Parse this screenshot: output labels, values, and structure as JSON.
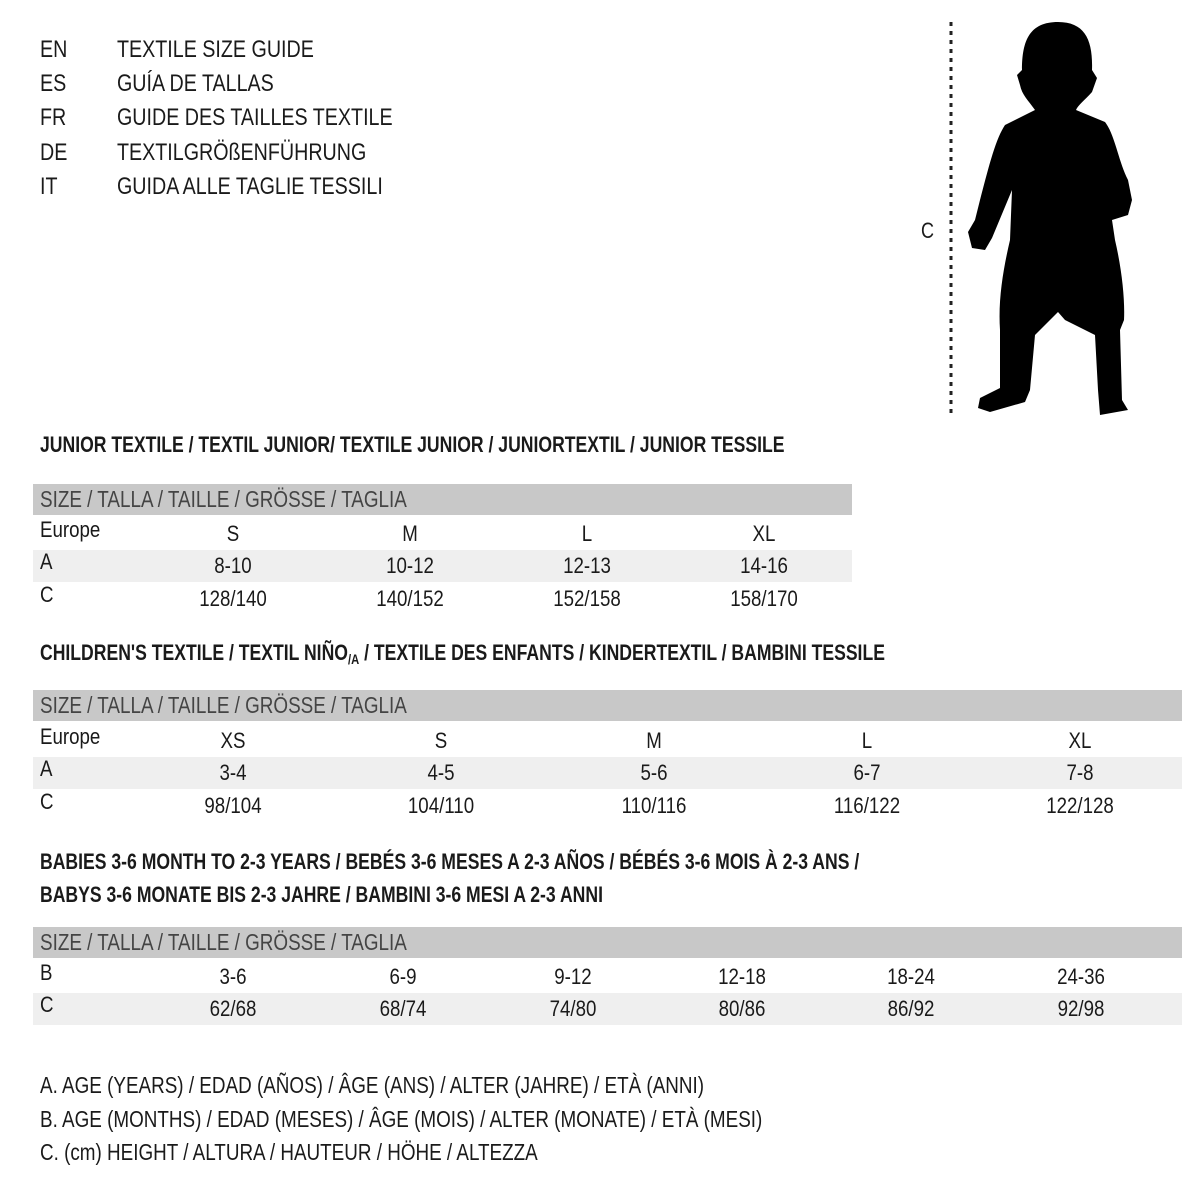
{
  "titles": [
    {
      "lang": "EN",
      "text": "TEXTILE SIZE GUIDE"
    },
    {
      "lang": "ES",
      "text": "GUÍA DE TALLAS"
    },
    {
      "lang": "FR",
      "text": "GUIDE DES TAILLES TEXTILE"
    },
    {
      "lang": "DE",
      "text": "TEXTILGRÖßENFÜHRUNG"
    },
    {
      "lang": "IT",
      "text": "GUIDA ALLE TAGLIE TESSILI"
    }
  ],
  "figure": {
    "measure_label": "C"
  },
  "size_header": "SIZE / TALLA / TAILLE / GRÖSSE / TAGLIA",
  "junior": {
    "heading": "JUNIOR TEXTILE / TEXTIL JUNIOR/ TEXTILE JUNIOR / JUNIORTEXTIL / JUNIOR TESSILE",
    "rows": [
      {
        "label": "Europe",
        "values": [
          "S",
          "M",
          "L",
          "XL"
        ]
      },
      {
        "label": "A",
        "values": [
          "8-10",
          "10-12",
          "12-13",
          "14-16"
        ]
      },
      {
        "label": "C",
        "values": [
          "128/140",
          "140/152",
          "152/158",
          "158/170"
        ]
      }
    ]
  },
  "children": {
    "heading_pre": "CHILDREN'S TEXTILE / TEXTIL NIÑO",
    "heading_sub": "/A",
    "heading_post": " / TEXTILE DES ENFANTS / KINDERTEXTIL / BAMBINI TESSILE",
    "rows": [
      {
        "label": "Europe",
        "values": [
          "XS",
          "S",
          "M",
          "L",
          "XL"
        ]
      },
      {
        "label": "A",
        "values": [
          "3-4",
          "4-5",
          "5-6",
          "6-7",
          "7-8"
        ]
      },
      {
        "label": "C",
        "values": [
          "98/104",
          "104/110",
          "110/116",
          "116/122",
          "122/128"
        ]
      }
    ]
  },
  "babies": {
    "heading_line1": "BABIES 3-6 MONTH TO 2-3 YEARS / BEBÉS 3-6 MESES A 2-3 AÑOS / BÉBÉS 3-6 MOIS À 2-3 ANS /",
    "heading_line2": "BABYS 3-6 MONATE BIS 2-3 JAHRE / BAMBINI 3-6 MESI A 2-3 ANNI",
    "rows": [
      {
        "label": "B",
        "values": [
          "3-6",
          "6-9",
          "9-12",
          "12-18",
          "18-24",
          "24-36"
        ]
      },
      {
        "label": "C",
        "values": [
          "62/68",
          "68/74",
          "74/80",
          "80/86",
          "86/92",
          "92/98"
        ]
      }
    ]
  },
  "legend": [
    "A. AGE (YEARS) / EDAD (AÑOS) / ÂGE (ANS) / ALTER (JAHRE) / ETÀ (ANNI)",
    "B. AGE (MONTHS) / EDAD (MESES) / ÂGE (MOIS) / ALTER (MONATE) / ETÀ (MESI)",
    "C. (cm) HEIGHT / ALTURA / HAUTEUR / HÖHE / ALTEZZA"
  ]
}
